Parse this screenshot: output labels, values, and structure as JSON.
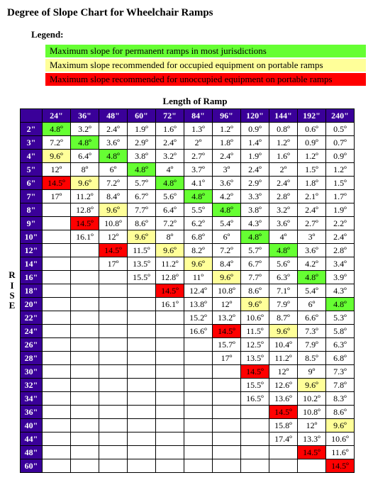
{
  "title": "Degree of Slope Chart for Wheelchair Ramps",
  "legend": {
    "label": "Legend:",
    "items": [
      {
        "text": "Maximum slope for permanent ramps in most jurisdictions",
        "color": "#66ff33"
      },
      {
        "text": "Maximum slope recommended for occupied equipment on portable ramps",
        "color": "#ffff99"
      },
      {
        "text": "Maximum slope recommended for unoccupied equipment on portable ramps",
        "color": "#ff0000"
      }
    ]
  },
  "colors": {
    "header_bg": "#3a0099",
    "header_fg": "#ffffff",
    "border": "#000000",
    "green": "#66ff33",
    "yellow": "#ffff99",
    "red": "#ff0000",
    "none": "#ffffff"
  },
  "x_axis": {
    "label": "Length of Ramp",
    "headers": [
      "24\"",
      "36\"",
      "48\"",
      "60\"",
      "72\"",
      "84\"",
      "96\"",
      "120\"",
      "144\"",
      "192\"",
      "240\""
    ]
  },
  "y_axis": {
    "label": "RISE",
    "headers": [
      "2\"",
      "3\"",
      "4\"",
      "5\"",
      "6\"",
      "7\"",
      "8\"",
      "9\"",
      "10\"",
      "12\"",
      "14\"",
      "16\"",
      "18\"",
      "20\"",
      "22\"",
      "24\"",
      "26\"",
      "28\"",
      "30\"",
      "32\"",
      "34\"",
      "36\"",
      "40\"",
      "44\"",
      "48\"",
      "60\""
    ]
  },
  "cells": [
    [
      [
        "4.8º",
        "g"
      ],
      [
        "3.2º",
        ""
      ],
      [
        "2.4º",
        ""
      ],
      [
        "1.9º",
        ""
      ],
      [
        "1.6º",
        ""
      ],
      [
        "1.3º",
        ""
      ],
      [
        "1.2º",
        ""
      ],
      [
        "0.9º",
        ""
      ],
      [
        "0.8º",
        ""
      ],
      [
        "0.6º",
        ""
      ],
      [
        "0.5º",
        ""
      ]
    ],
    [
      [
        "7.2º",
        ""
      ],
      [
        "4.8º",
        "g"
      ],
      [
        "3.6º",
        ""
      ],
      [
        "2.9º",
        ""
      ],
      [
        "2.4º",
        ""
      ],
      [
        "2º",
        ""
      ],
      [
        "1.8º",
        ""
      ],
      [
        "1.4º",
        ""
      ],
      [
        "1.2º",
        ""
      ],
      [
        "0.9º",
        ""
      ],
      [
        "0.7º",
        ""
      ]
    ],
    [
      [
        "9.6º",
        "y"
      ],
      [
        "6.4º",
        ""
      ],
      [
        "4.8º",
        "g"
      ],
      [
        "3.8º",
        ""
      ],
      [
        "3.2º",
        ""
      ],
      [
        "2.7º",
        ""
      ],
      [
        "2.4º",
        ""
      ],
      [
        "1.9º",
        ""
      ],
      [
        "1.6º",
        ""
      ],
      [
        "1.2º",
        ""
      ],
      [
        "0.9º",
        ""
      ]
    ],
    [
      [
        "12º",
        ""
      ],
      [
        "8º",
        ""
      ],
      [
        "6º",
        ""
      ],
      [
        "4.8º",
        "g"
      ],
      [
        "4º",
        ""
      ],
      [
        "3.7º",
        ""
      ],
      [
        "3º",
        ""
      ],
      [
        "2.4º",
        ""
      ],
      [
        "2º",
        ""
      ],
      [
        "1.5º",
        ""
      ],
      [
        "1.2º",
        ""
      ]
    ],
    [
      [
        "14.5º",
        "r"
      ],
      [
        "9.6º",
        "y"
      ],
      [
        "7.2º",
        ""
      ],
      [
        "5.7º",
        ""
      ],
      [
        "4.8º",
        "g"
      ],
      [
        "4.1º",
        ""
      ],
      [
        "3.6º",
        ""
      ],
      [
        "2.9º",
        ""
      ],
      [
        "2.4º",
        ""
      ],
      [
        "1.8º",
        ""
      ],
      [
        "1.5º",
        ""
      ]
    ],
    [
      [
        "17º",
        ""
      ],
      [
        "11.2º",
        ""
      ],
      [
        "8.4º",
        ""
      ],
      [
        "6.7º",
        ""
      ],
      [
        "5.6º",
        ""
      ],
      [
        "4.8º",
        "g"
      ],
      [
        "4.2º",
        ""
      ],
      [
        "3.3º",
        ""
      ],
      [
        "2.8º",
        ""
      ],
      [
        "2.1º",
        ""
      ],
      [
        "1.7º",
        ""
      ]
    ],
    [
      [
        "",
        ""
      ],
      [
        "12.8º",
        ""
      ],
      [
        "9.6º",
        "y"
      ],
      [
        "7.7º",
        ""
      ],
      [
        "6.4º",
        ""
      ],
      [
        "5.5º",
        ""
      ],
      [
        "4.8º",
        "g"
      ],
      [
        "3.8º",
        ""
      ],
      [
        "3.2º",
        ""
      ],
      [
        "2.4º",
        ""
      ],
      [
        "1.9º",
        ""
      ]
    ],
    [
      [
        "",
        ""
      ],
      [
        "14.5º",
        "r"
      ],
      [
        "10.8º",
        ""
      ],
      [
        "8.6º",
        ""
      ],
      [
        "7.2º",
        ""
      ],
      [
        "6.2º",
        ""
      ],
      [
        "5.4º",
        ""
      ],
      [
        "4.3º",
        ""
      ],
      [
        "3.6º",
        ""
      ],
      [
        "2.7º",
        ""
      ],
      [
        "2.2º",
        ""
      ]
    ],
    [
      [
        "",
        ""
      ],
      [
        "16.1º",
        ""
      ],
      [
        "12º",
        ""
      ],
      [
        "9.6º",
        "y"
      ],
      [
        "8º",
        ""
      ],
      [
        "6.8º",
        ""
      ],
      [
        "6º",
        ""
      ],
      [
        "4.8º",
        "g"
      ],
      [
        "4º",
        ""
      ],
      [
        "3º",
        ""
      ],
      [
        "2.4º",
        ""
      ]
    ],
    [
      [
        "",
        ""
      ],
      [
        "",
        ""
      ],
      [
        "14.5º",
        "r"
      ],
      [
        "11.5º",
        ""
      ],
      [
        "9.6º",
        "y"
      ],
      [
        "8.2º",
        ""
      ],
      [
        "7.2º",
        ""
      ],
      [
        "5.7º",
        ""
      ],
      [
        "4.8º",
        "g"
      ],
      [
        "3.6º",
        ""
      ],
      [
        "2.8º",
        ""
      ]
    ],
    [
      [
        "",
        ""
      ],
      [
        "",
        ""
      ],
      [
        "17º",
        ""
      ],
      [
        "13.5º",
        ""
      ],
      [
        "11.2º",
        ""
      ],
      [
        "9.6º",
        "y"
      ],
      [
        "8.4º",
        ""
      ],
      [
        "6.7º",
        ""
      ],
      [
        "5.6º",
        ""
      ],
      [
        "4.2º",
        ""
      ],
      [
        "3.4º",
        ""
      ]
    ],
    [
      [
        "",
        ""
      ],
      [
        "",
        ""
      ],
      [
        "",
        ""
      ],
      [
        "15.5º",
        ""
      ],
      [
        "12.8º",
        ""
      ],
      [
        "11º",
        ""
      ],
      [
        "9.6º",
        "y"
      ],
      [
        "7.7º",
        ""
      ],
      [
        "6.3º",
        ""
      ],
      [
        "4.8º",
        "g"
      ],
      [
        "3.9º",
        ""
      ]
    ],
    [
      [
        "",
        ""
      ],
      [
        "",
        ""
      ],
      [
        "",
        ""
      ],
      [
        "",
        ""
      ],
      [
        "14.5º",
        "r"
      ],
      [
        "12.4º",
        ""
      ],
      [
        "10.8º",
        ""
      ],
      [
        "8.6º",
        ""
      ],
      [
        "7.1º",
        ""
      ],
      [
        "5.4º",
        ""
      ],
      [
        "4.3º",
        ""
      ]
    ],
    [
      [
        "",
        ""
      ],
      [
        "",
        ""
      ],
      [
        "",
        ""
      ],
      [
        "",
        ""
      ],
      [
        "16.1º",
        ""
      ],
      [
        "13.8º",
        ""
      ],
      [
        "12º",
        ""
      ],
      [
        "9.6º",
        "y"
      ],
      [
        "7.9º",
        ""
      ],
      [
        "6º",
        ""
      ],
      [
        "4.8º",
        "g"
      ]
    ],
    [
      [
        "",
        ""
      ],
      [
        "",
        ""
      ],
      [
        "",
        ""
      ],
      [
        "",
        ""
      ],
      [
        "",
        ""
      ],
      [
        "15.2º",
        ""
      ],
      [
        "13.2º",
        ""
      ],
      [
        "10.6º",
        ""
      ],
      [
        "8.7º",
        ""
      ],
      [
        "6.6º",
        ""
      ],
      [
        "5.3º",
        ""
      ]
    ],
    [
      [
        "",
        ""
      ],
      [
        "",
        ""
      ],
      [
        "",
        ""
      ],
      [
        "",
        ""
      ],
      [
        "",
        ""
      ],
      [
        "16.6º",
        ""
      ],
      [
        "14.5º",
        "r"
      ],
      [
        "11.5º",
        ""
      ],
      [
        "9.6º",
        "y"
      ],
      [
        "7.3º",
        ""
      ],
      [
        "5.8º",
        ""
      ]
    ],
    [
      [
        "",
        ""
      ],
      [
        "",
        ""
      ],
      [
        "",
        ""
      ],
      [
        "",
        ""
      ],
      [
        "",
        ""
      ],
      [
        "",
        ""
      ],
      [
        "15.7º",
        ""
      ],
      [
        "12.5º",
        ""
      ],
      [
        "10.4º",
        ""
      ],
      [
        "7.9º",
        ""
      ],
      [
        "6.3º",
        ""
      ]
    ],
    [
      [
        "",
        ""
      ],
      [
        "",
        ""
      ],
      [
        "",
        ""
      ],
      [
        "",
        ""
      ],
      [
        "",
        ""
      ],
      [
        "",
        ""
      ],
      [
        "17º",
        ""
      ],
      [
        "13.5º",
        ""
      ],
      [
        "11.2º",
        ""
      ],
      [
        "8.5º",
        ""
      ],
      [
        "6.8º",
        ""
      ]
    ],
    [
      [
        "",
        ""
      ],
      [
        "",
        ""
      ],
      [
        "",
        ""
      ],
      [
        "",
        ""
      ],
      [
        "",
        ""
      ],
      [
        "",
        ""
      ],
      [
        "",
        ""
      ],
      [
        "14.5º",
        "r"
      ],
      [
        "12º",
        ""
      ],
      [
        "9º",
        ""
      ],
      [
        "7.3º",
        ""
      ]
    ],
    [
      [
        "",
        ""
      ],
      [
        "",
        ""
      ],
      [
        "",
        ""
      ],
      [
        "",
        ""
      ],
      [
        "",
        ""
      ],
      [
        "",
        ""
      ],
      [
        "",
        ""
      ],
      [
        "15.5º",
        ""
      ],
      [
        "12.6º",
        ""
      ],
      [
        "9.6º",
        "y"
      ],
      [
        "7.8º",
        ""
      ]
    ],
    [
      [
        "",
        ""
      ],
      [
        "",
        ""
      ],
      [
        "",
        ""
      ],
      [
        "",
        ""
      ],
      [
        "",
        ""
      ],
      [
        "",
        ""
      ],
      [
        "",
        ""
      ],
      [
        "16.5º",
        ""
      ],
      [
        "13.6º",
        ""
      ],
      [
        "10.2º",
        ""
      ],
      [
        "8.3º",
        ""
      ]
    ],
    [
      [
        "",
        ""
      ],
      [
        "",
        ""
      ],
      [
        "",
        ""
      ],
      [
        "",
        ""
      ],
      [
        "",
        ""
      ],
      [
        "",
        ""
      ],
      [
        "",
        ""
      ],
      [
        "",
        ""
      ],
      [
        "14.5º",
        "r"
      ],
      [
        "10.8º",
        ""
      ],
      [
        "8.6º",
        ""
      ]
    ],
    [
      [
        "",
        ""
      ],
      [
        "",
        ""
      ],
      [
        "",
        ""
      ],
      [
        "",
        ""
      ],
      [
        "",
        ""
      ],
      [
        "",
        ""
      ],
      [
        "",
        ""
      ],
      [
        "",
        ""
      ],
      [
        "15.8º",
        ""
      ],
      [
        "12º",
        ""
      ],
      [
        "9.6º",
        "y"
      ]
    ],
    [
      [
        "",
        ""
      ],
      [
        "",
        ""
      ],
      [
        "",
        ""
      ],
      [
        "",
        ""
      ],
      [
        "",
        ""
      ],
      [
        "",
        ""
      ],
      [
        "",
        ""
      ],
      [
        "",
        ""
      ],
      [
        "17.4º",
        ""
      ],
      [
        "13.3º",
        ""
      ],
      [
        "10.6º",
        ""
      ]
    ],
    [
      [
        "",
        ""
      ],
      [
        "",
        ""
      ],
      [
        "",
        ""
      ],
      [
        "",
        ""
      ],
      [
        "",
        ""
      ],
      [
        "",
        ""
      ],
      [
        "",
        ""
      ],
      [
        "",
        ""
      ],
      [
        "",
        ""
      ],
      [
        "14.5º",
        "r"
      ],
      [
        "11.6º",
        ""
      ]
    ],
    [
      [
        "",
        ""
      ],
      [
        "",
        ""
      ],
      [
        "",
        ""
      ],
      [
        "",
        ""
      ],
      [
        "",
        ""
      ],
      [
        "",
        ""
      ],
      [
        "",
        ""
      ],
      [
        "",
        ""
      ],
      [
        "",
        ""
      ],
      [
        "",
        ""
      ],
      [
        "14.5º",
        "r"
      ]
    ]
  ]
}
